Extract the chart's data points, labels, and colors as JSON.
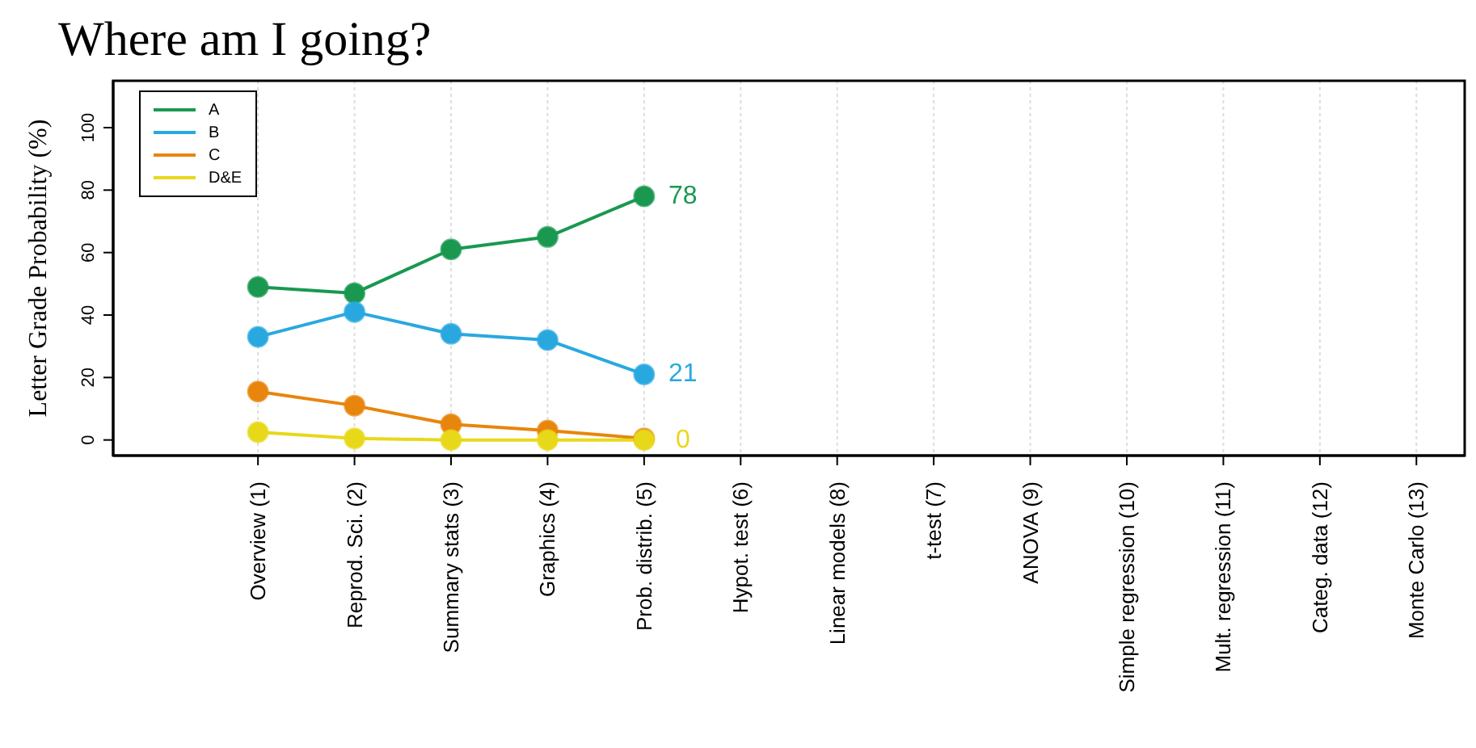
{
  "chart_data": {
    "type": "line",
    "title": "Where am I going?",
    "ylabel": "Letter Grade Probability (%)",
    "categories": [
      "Overview (1)",
      "Reprod. Sci. (2)",
      "Summary stats (3)",
      "Graphics (4)",
      "Prob. distrib. (5)",
      "Hypot. test (6)",
      "Linear models (8)",
      "t-test (7)",
      "ANOVA (9)",
      "Simple regression (10)",
      "Mult. regression (11)",
      "Categ. data (12)",
      "Monte  Carlo (13)"
    ],
    "series": [
      {
        "name": "A",
        "color": "#1a9850",
        "values": [
          49,
          47,
          61,
          65,
          78,
          null,
          null,
          null,
          null,
          null,
          null,
          null,
          null
        ],
        "value_labels": [
          null,
          null,
          null,
          null,
          "78",
          null,
          null,
          null,
          null,
          null,
          null,
          null,
          null
        ]
      },
      {
        "name": "B",
        "color": "#29a8e0",
        "values": [
          33,
          41,
          34,
          32,
          21,
          null,
          null,
          null,
          null,
          null,
          null,
          null,
          null
        ],
        "value_labels": [
          null,
          null,
          null,
          null,
          "21",
          null,
          null,
          null,
          null,
          null,
          null,
          null,
          null
        ]
      },
      {
        "name": "C",
        "color": "#e8850c",
        "values": [
          15.5,
          11,
          5,
          3,
          0.5,
          null,
          null,
          null,
          null,
          null,
          null,
          null,
          null
        ]
      },
      {
        "name": "D&E",
        "color": "#e8d81a",
        "values": [
          2.5,
          0.5,
          0,
          0,
          0,
          null,
          null,
          null,
          null,
          null,
          null,
          null,
          null
        ],
        "value_labels": [
          null,
          null,
          null,
          null,
          "0",
          null,
          null,
          null,
          null,
          null,
          null,
          null,
          null
        ]
      }
    ],
    "ylim": [
      -5,
      115
    ],
    "yticks": [
      0,
      20,
      40,
      60,
      80,
      100
    ],
    "grid": "x",
    "legend": "top left",
    "marker": "circle",
    "line_style": "solid"
  }
}
